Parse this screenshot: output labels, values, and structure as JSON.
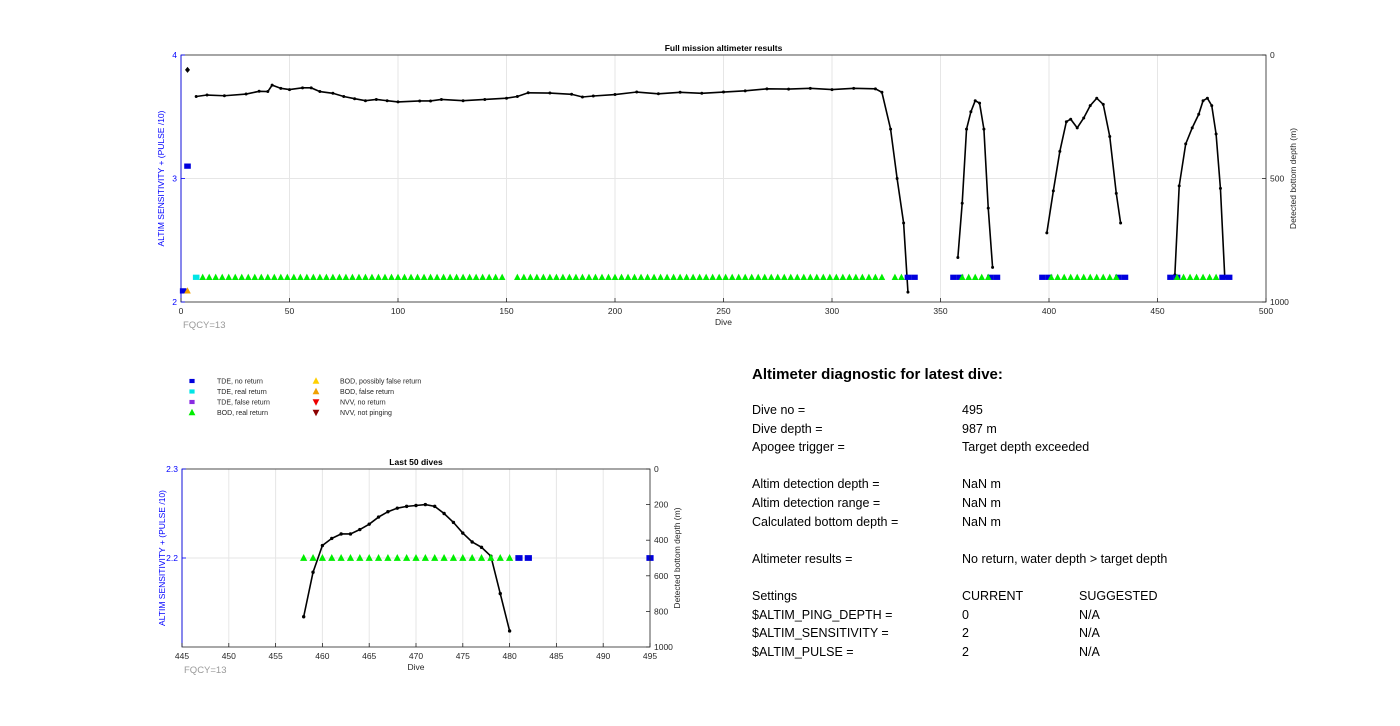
{
  "chart_data": [
    {
      "type": "line",
      "title": "Full mission altimeter results",
      "xlabel": "Dive",
      "ylabel": "ALTIM SENSITIVITY + (PULSE /10)",
      "ylabel_right": "Detected bottom depth (m)",
      "xlim": [
        0,
        500
      ],
      "ylim": [
        2,
        4
      ],
      "ylim_right": [
        1000,
        0
      ],
      "xticks": [
        0,
        50,
        100,
        150,
        200,
        250,
        300,
        350,
        400,
        450,
        500
      ],
      "yticks": [
        2,
        3,
        4
      ],
      "yticks_right": [
        0,
        500,
        1000
      ],
      "footnote": "FQCY=13",
      "grid": true,
      "series": [
        {
          "name": "Detected bottom depth",
          "axis": "right",
          "color": "#000000",
          "segments": [
            {
              "x": [
                3
              ],
              "y": [
                60
              ]
            },
            {
              "x": [
                7,
                12,
                20,
                30,
                36,
                40,
                42,
                46,
                50,
                56,
                60,
                64,
                70,
                75,
                80,
                85,
                90,
                95,
                100,
                110,
                115,
                120,
                130,
                140,
                150,
                155,
                160,
                170,
                180,
                185,
                190,
                200,
                210,
                220,
                230,
                240,
                250,
                260,
                270,
                280,
                290,
                300,
                310,
                320,
                323,
                327,
                330,
                333,
                335
              ],
              "y": [
                168,
                162,
                165,
                158,
                147,
                148,
                122,
                135,
                140,
                133,
                133,
                148,
                155,
                168,
                177,
                185,
                180,
                185,
                190,
                186,
                186,
                180,
                185,
                180,
                175,
                168,
                153,
                154,
                159,
                170,
                166,
                160,
                150,
                157,
                151,
                155,
                150,
                145,
                137,
                138,
                135,
                140,
                135,
                137,
                151,
                300,
                500,
                680,
                960
              ]
            },
            {
              "x": [
                358,
                360,
                362,
                364,
                366,
                368,
                370,
                372,
                374
              ],
              "y": [
                820,
                600,
                300,
                230,
                185,
                195,
                300,
                620,
                860
              ]
            },
            {
              "x": [
                399,
                402,
                405,
                408,
                410,
                413,
                416,
                419,
                422,
                425,
                428,
                431,
                433
              ],
              "y": [
                720,
                550,
                390,
                270,
                260,
                295,
                255,
                205,
                175,
                200,
                330,
                560,
                680
              ]
            },
            {
              "x": [
                458,
                460,
                463,
                466,
                469,
                471,
                473,
                475,
                477,
                479,
                481
              ],
              "y": [
                890,
                530,
                360,
                295,
                240,
                185,
                175,
                205,
                320,
                540,
                900
              ]
            }
          ]
        },
        {
          "name": "TDE, no return",
          "axis": "left",
          "color": "#0000dd",
          "marker": "square",
          "segments": [
            {
              "x": [
                1
              ],
              "y": [
                2.09
              ]
            },
            {
              "x": [
                3,
                5
              ],
              "y": [
                3.1,
                3.1
              ]
            },
            {
              "x": [
                335,
                338
              ],
              "y": [
                2.2,
                2.2
              ]
            },
            {
              "x": [
                356,
                359
              ],
              "y": [
                2.2,
                2.2
              ]
            },
            {
              "x": [
                373,
                376
              ],
              "y": [
                2.2,
                2.2
              ]
            },
            {
              "x": [
                397,
                400
              ],
              "y": [
                2.2,
                2.2
              ]
            },
            {
              "x": [
                432,
                435
              ],
              "y": [
                2.2,
                2.2
              ]
            },
            {
              "x": [
                456,
                459
              ],
              "y": [
                2.2,
                2.2
              ]
            },
            {
              "x": [
                480,
                483
              ],
              "y": [
                2.2,
                2.2
              ]
            }
          ]
        },
        {
          "name": "TDE, real return",
          "axis": "left",
          "color": "#00e5e5",
          "marker": "square",
          "segments": [
            {
              "x": [
                7,
                9
              ],
              "y": [
                2.2,
                2.2
              ]
            }
          ]
        },
        {
          "name": "BOD, real return",
          "axis": "left",
          "color": "#00ee00",
          "marker": "triangle-up",
          "segments": [
            {
              "x": [
                10,
                37
              ],
              "y": [
                2.2,
                2.2
              ]
            },
            {
              "x": [
                40,
                150
              ],
              "y": [
                2.2,
                2.2
              ]
            },
            {
              "x": [
                155,
                325
              ],
              "y": [
                2.2,
                2.2
              ]
            },
            {
              "x": [
                329,
                334
              ],
              "y": [
                2.2,
                2.2
              ]
            },
            {
              "x": [
                360,
                372
              ],
              "y": [
                2.2,
                2.2
              ]
            },
            {
              "x": [
                401,
                431
              ],
              "y": [
                2.2,
                2.2
              ]
            },
            {
              "x": [
                459,
                479
              ],
              "y": [
                2.2,
                2.2
              ]
            }
          ]
        },
        {
          "name": "BOD, false return",
          "axis": "left",
          "color": "#f0a000",
          "marker": "triangle-up",
          "segments": [
            {
              "x": [
                3
              ],
              "y": [
                2.09
              ]
            }
          ]
        }
      ]
    },
    {
      "type": "line",
      "title": "Last 50 dives",
      "xlabel": "Dive",
      "ylabel": "ALTIM SENSITIVITY + (PULSE /10)",
      "ylabel_right": "Detected bottom depth (m)",
      "xlim": [
        445,
        495
      ],
      "ylim": [
        2.1,
        2.3
      ],
      "ylim_right": [
        1000,
        0
      ],
      "xticks": [
        445,
        450,
        455,
        460,
        465,
        470,
        475,
        480,
        485,
        490,
        495
      ],
      "yticks": [
        2.2,
        2.3
      ],
      "yticks_right": [
        0,
        200,
        400,
        600,
        800,
        1000
      ],
      "footnote": "FQCY=13",
      "grid": true,
      "series": [
        {
          "name": "Detected bottom depth",
          "axis": "right",
          "color": "#000000",
          "segments": [
            {
              "x": [
                458,
                459,
                460,
                461,
                462,
                463,
                464,
                465,
                466,
                467,
                468,
                469,
                470,
                471,
                472,
                473,
                474,
                475,
                476,
                477,
                478,
                479,
                480
              ],
              "y": [
                830,
                580,
                430,
                390,
                365,
                365,
                340,
                310,
                270,
                240,
                220,
                210,
                205,
                200,
                210,
                250,
                300,
                360,
                410,
                440,
                490,
                700,
                910
              ]
            }
          ]
        },
        {
          "name": "BOD, real return",
          "axis": "left",
          "color": "#00ee00",
          "marker": "triangle-up",
          "segments": [
            {
              "x": [
                458,
                459,
                460,
                461,
                462,
                463,
                464,
                465,
                466,
                467,
                468,
                469,
                470,
                471,
                472,
                473,
                474,
                475,
                476,
                477,
                478,
                479,
                480
              ],
              "y": [
                2.2,
                2.2,
                2.2,
                2.2,
                2.2,
                2.2,
                2.2,
                2.2,
                2.2,
                2.2,
                2.2,
                2.2,
                2.2,
                2.2,
                2.2,
                2.2,
                2.2,
                2.2,
                2.2,
                2.2,
                2.2,
                2.2,
                2.2
              ]
            }
          ]
        },
        {
          "name": "TDE, no return",
          "axis": "left",
          "color": "#0000dd",
          "marker": "square",
          "segments": [
            {
              "x": [
                481,
                482,
                495
              ],
              "y": [
                2.2,
                2.2,
                2.2
              ]
            }
          ]
        }
      ]
    }
  ],
  "legend": {
    "col1": [
      {
        "label": "TDE, no return",
        "color": "#0000dd",
        "marker": "square"
      },
      {
        "label": "TDE, real return",
        "color": "#00e5e5",
        "marker": "square"
      },
      {
        "label": "TDE, false return",
        "color": "#8a2be2",
        "marker": "square"
      },
      {
        "label": "BOD, real return",
        "color": "#00ee00",
        "marker": "triangle-up"
      }
    ],
    "col2": [
      {
        "label": "BOD, possibly false return",
        "color": "#ffd000",
        "marker": "triangle-up"
      },
      {
        "label": "BOD, false return",
        "color": "#f0a000",
        "marker": "triangle-up"
      },
      {
        "label": "NVV, no return",
        "color": "#ee0000",
        "marker": "triangle-down"
      },
      {
        "label": "NVV, not pinging",
        "color": "#8b0000",
        "marker": "triangle-down"
      }
    ]
  },
  "diagnostic": {
    "title": "Altimeter diagnostic for latest dive:",
    "dive_no_label": "Dive no =",
    "dive_no": "495",
    "dive_depth_label": "Dive depth =",
    "dive_depth": "987 m",
    "apogee_label": "Apogee trigger =",
    "apogee": "Target depth exceeded",
    "det_depth_label": "Altim detection depth =",
    "det_depth": "NaN m",
    "det_range_label": "Altim detection range =",
    "det_range": "NaN m",
    "calc_depth_label": "Calculated bottom depth =",
    "calc_depth": "NaN m",
    "results_label": "Altimeter results =",
    "results": "No return, water depth > target depth",
    "settings_label": "Settings",
    "current_label": "CURRENT",
    "suggested_label": "SUGGESTED",
    "settings": [
      {
        "name": "$ALTIM_PING_DEPTH =",
        "current": "0",
        "suggested": "N/A"
      },
      {
        "name": "$ALTIM_SENSITIVITY =",
        "current": "2",
        "suggested": "N/A"
      },
      {
        "name": "$ALTIM_PULSE =",
        "current": "2",
        "suggested": "N/A"
      }
    ]
  }
}
